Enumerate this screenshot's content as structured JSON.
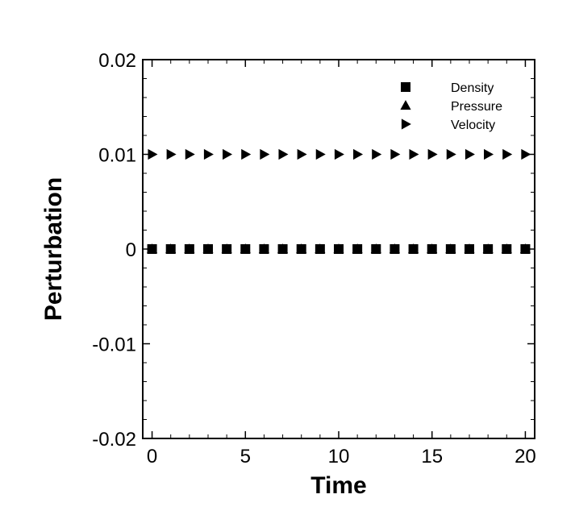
{
  "chart_data": {
    "type": "scatter",
    "title": "",
    "xlabel": "Time",
    "ylabel": "Perturbation",
    "xlim": [
      -0.5,
      20.5
    ],
    "ylim": [
      -0.02,
      0.02
    ],
    "xticks": [
      0,
      5,
      10,
      15,
      20
    ],
    "xtick_labels": [
      "0",
      "5",
      "10",
      "15",
      "20"
    ],
    "yticks": [
      -0.02,
      -0.01,
      0,
      0.01,
      0.02
    ],
    "ytick_labels": [
      "-0.02",
      "-0.01",
      "0",
      "0.01",
      "0.02"
    ],
    "grid": false,
    "legend_position": "top-right",
    "x": [
      0,
      1,
      2,
      3,
      4,
      5,
      6,
      7,
      8,
      9,
      10,
      11,
      12,
      13,
      14,
      15,
      16,
      17,
      18,
      19,
      20
    ],
    "series": [
      {
        "name": "Density",
        "marker": "square",
        "color": "#000000",
        "values": [
          0,
          0,
          0,
          0,
          0,
          0,
          0,
          0,
          0,
          0,
          0,
          0,
          0,
          0,
          0,
          0,
          0,
          0,
          0,
          0,
          0
        ]
      },
      {
        "name": "Pressure",
        "marker": "triangle-up",
        "color": "#000000",
        "values": [
          0,
          0,
          0,
          0,
          0,
          0,
          0,
          0,
          0,
          0,
          0,
          0,
          0,
          0,
          0,
          0,
          0,
          0,
          0,
          0,
          0
        ]
      },
      {
        "name": "Velocity",
        "marker": "triangle-right",
        "color": "#000000",
        "values": [
          0.01,
          0.01,
          0.01,
          0.01,
          0.01,
          0.01,
          0.01,
          0.01,
          0.01,
          0.01,
          0.01,
          0.01,
          0.01,
          0.01,
          0.01,
          0.01,
          0.01,
          0.01,
          0.01,
          0.01,
          0.01
        ]
      }
    ]
  }
}
